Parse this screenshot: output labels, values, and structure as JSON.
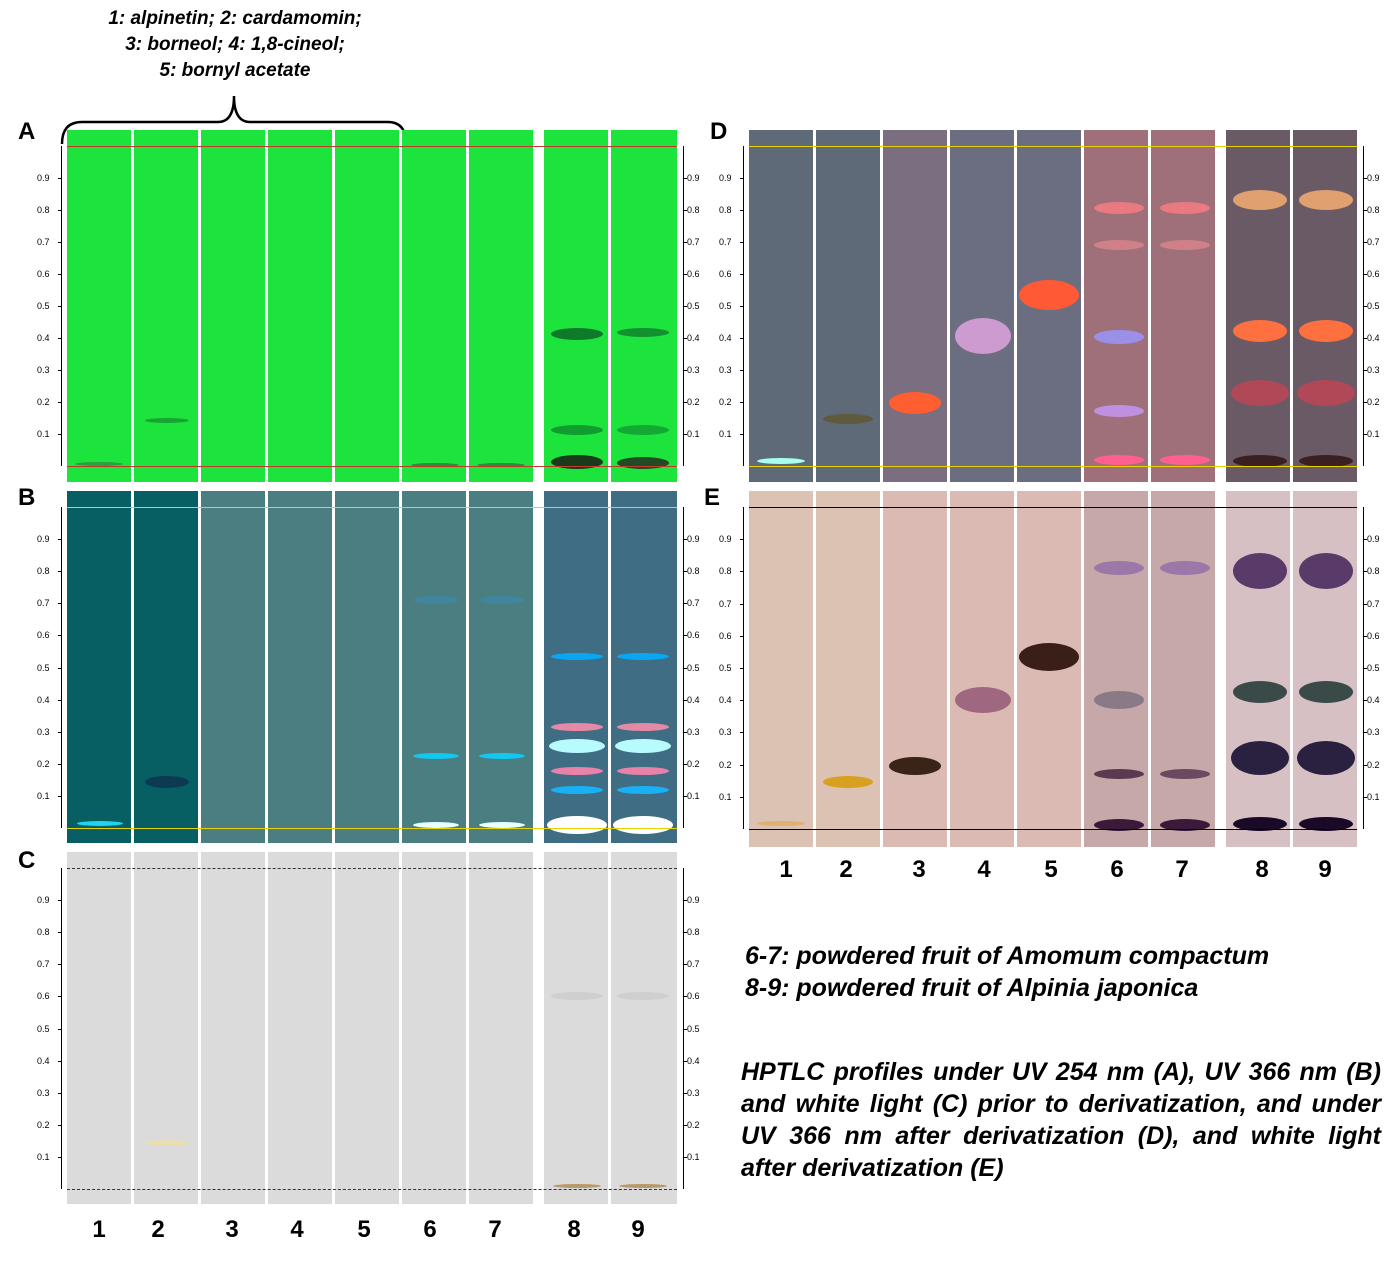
{
  "legend_top": [
    "1: alpinetin; 2: cardamomin;",
    "3: borneol; 4: 1,8-cineol;",
    "5: bornyl acetate"
  ],
  "panels": {
    "A": "A",
    "B": "B",
    "C": "C",
    "D": "D",
    "E": "E"
  },
  "rf_ticks": [
    "0.1",
    "0.2",
    "0.3",
    "0.4",
    "0.5",
    "0.6",
    "0.7",
    "0.8",
    "0.9"
  ],
  "lane_numbers": [
    "1",
    "2",
    "3",
    "4",
    "5",
    "6",
    "7",
    "8",
    "9"
  ],
  "samples_note": [
    "6-7: powdered fruit of Amomum compactum",
    "8-9: powdered fruit of Alpinia japonica"
  ],
  "caption": "HPTLC profiles under UV 254 nm (A), UV 366 nm (B) and white light (C) prior to derivatization, and under UV 366 nm after derivatization (D), and white light after derivatization (E)",
  "colors": {
    "uv254": "#1de43d",
    "uv366": "#4a7e80",
    "white_light": "#dcdbdc",
    "deriv_uv366": "#6a6a78",
    "deriv_white": "#d9bfb0"
  }
}
